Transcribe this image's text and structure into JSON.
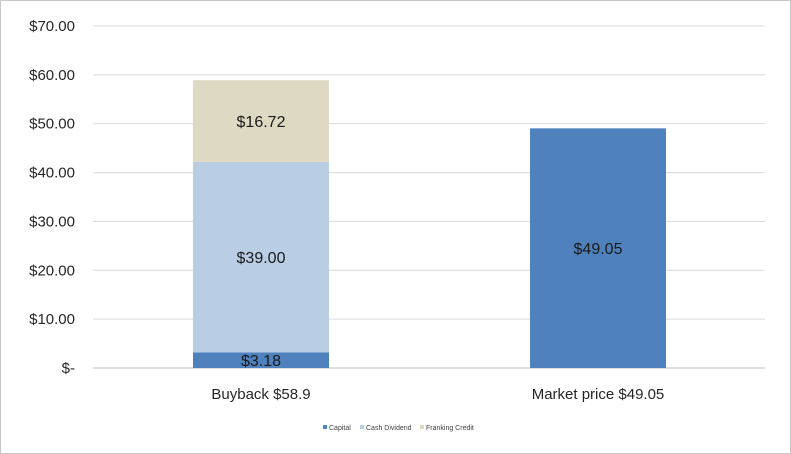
{
  "chart_data": {
    "type": "bar",
    "stacked": true,
    "categories": [
      "Buyback $58.9",
      "Market price $49.05"
    ],
    "series": [
      {
        "name": "Capital",
        "color": "#4f81bd",
        "values": [
          3.18,
          49.05
        ],
        "labels": [
          "$3.18",
          "$49.05"
        ]
      },
      {
        "name": "Cash Dividend",
        "color": "#b9cde5",
        "values": [
          39.0,
          0
        ],
        "labels": [
          "$39.00",
          ""
        ]
      },
      {
        "name": "Franking Credit",
        "color": "#ddd9c3",
        "values": [
          16.72,
          0
        ],
        "labels": [
          "$16.72",
          ""
        ]
      }
    ],
    "ylim": [
      0,
      70
    ],
    "yticks": [
      0,
      10,
      20,
      30,
      40,
      50,
      60,
      70
    ],
    "ytick_labels": [
      "$-",
      "$10.00",
      "$20.00",
      "$30.00",
      "$40.00",
      "$50.00",
      "$60.00",
      "$70.00"
    ],
    "grid": true,
    "legend_position": "bottom"
  }
}
